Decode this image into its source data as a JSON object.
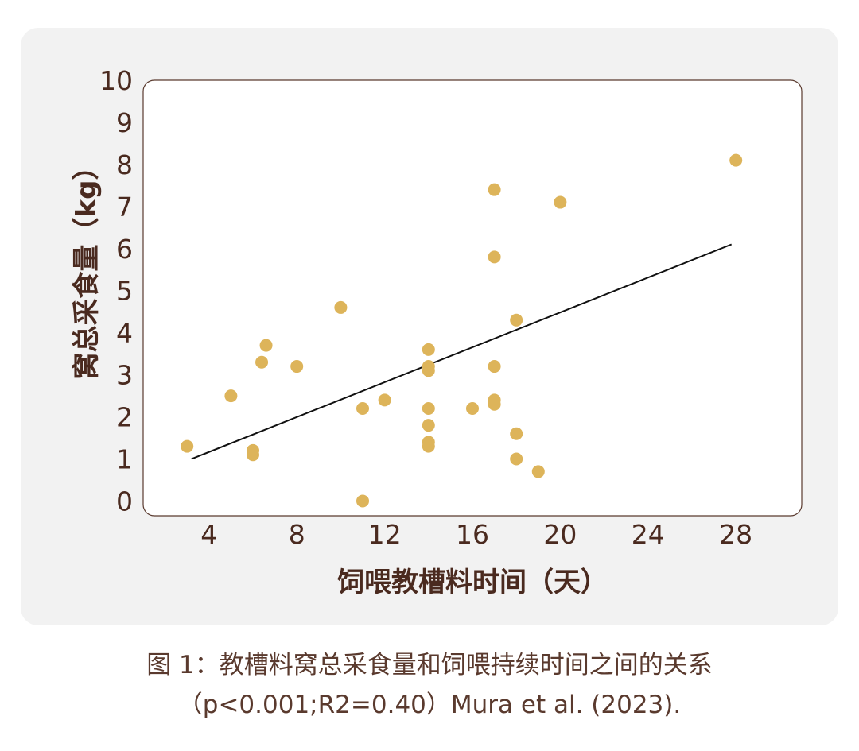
{
  "chart_data": {
    "type": "scatter",
    "xlabel": "饲喂教槽料时间（天）",
    "ylabel": "窝总采食量（kg）",
    "xticks": [
      4,
      8,
      12,
      16,
      20,
      24,
      28
    ],
    "yticks": [
      0,
      1,
      2,
      3,
      4,
      5,
      6,
      7,
      8,
      9,
      10
    ],
    "xlim": [
      1,
      31
    ],
    "ylim": [
      -0.35,
      10
    ],
    "point_color": "#ddb45a",
    "points": [
      {
        "x": 3,
        "y": 1.3
      },
      {
        "x": 5,
        "y": 2.5
      },
      {
        "x": 6,
        "y": 1.1
      },
      {
        "x": 6,
        "y": 1.2
      },
      {
        "x": 6.4,
        "y": 3.3
      },
      {
        "x": 6.6,
        "y": 3.7
      },
      {
        "x": 8,
        "y": 3.2
      },
      {
        "x": 10,
        "y": 4.6
      },
      {
        "x": 11,
        "y": 2.2
      },
      {
        "x": 11,
        "y": 0
      },
      {
        "x": 12,
        "y": 2.4
      },
      {
        "x": 14,
        "y": 3.6
      },
      {
        "x": 14,
        "y": 3.2
      },
      {
        "x": 14,
        "y": 3.1
      },
      {
        "x": 14,
        "y": 2.2
      },
      {
        "x": 14,
        "y": 1.8
      },
      {
        "x": 14,
        "y": 1.4
      },
      {
        "x": 14,
        "y": 1.3
      },
      {
        "x": 16,
        "y": 2.2
      },
      {
        "x": 17,
        "y": 7.4
      },
      {
        "x": 17,
        "y": 5.8
      },
      {
        "x": 17,
        "y": 3.2
      },
      {
        "x": 17,
        "y": 2.4
      },
      {
        "x": 17,
        "y": 2.3
      },
      {
        "x": 18,
        "y": 4.3
      },
      {
        "x": 18,
        "y": 1.6
      },
      {
        "x": 18,
        "y": 1.0
      },
      {
        "x": 19,
        "y": 0.7
      },
      {
        "x": 20,
        "y": 7.1
      },
      {
        "x": 28,
        "y": 8.1
      }
    ],
    "trendline": {
      "x": [
        3.2,
        27.8
      ],
      "y": [
        1.0,
        6.1
      ]
    }
  },
  "caption": {
    "line1": "图 1：教槽料窝总采食量和饲喂持续时间之间的关系",
    "line2": "（p<0.001;R2=0.40）Mura et al. (2023)."
  }
}
